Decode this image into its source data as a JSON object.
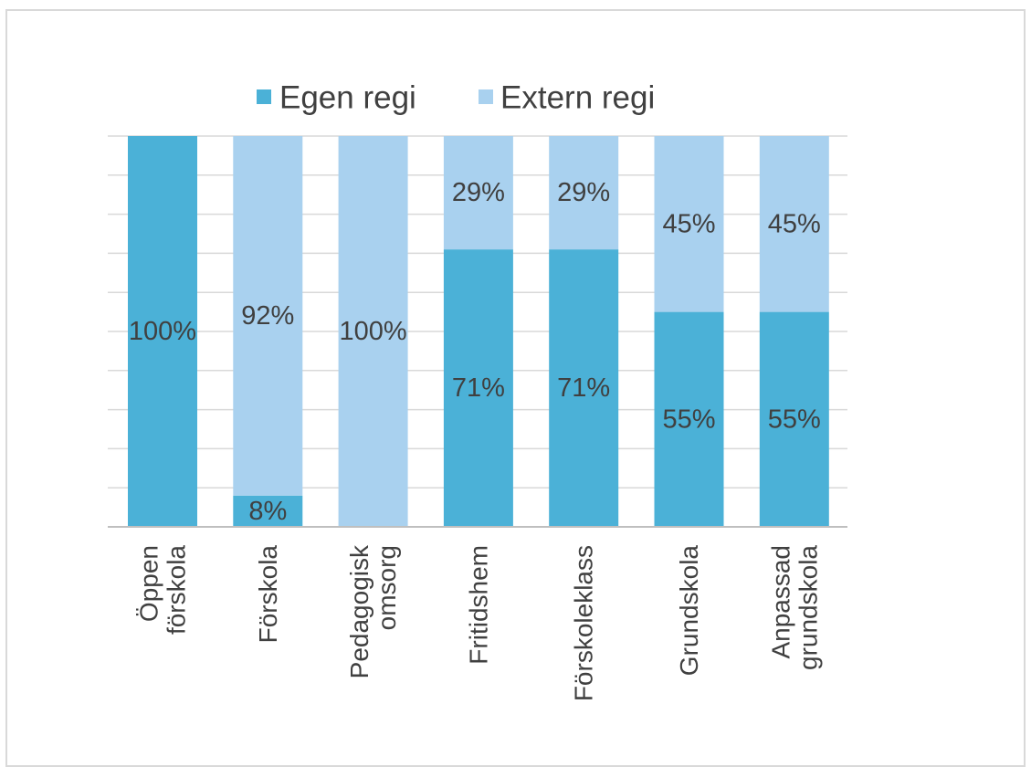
{
  "colors": {
    "egen": "#4bb1d7",
    "extern": "#a9d1ef",
    "grid": "#d9d9d9",
    "axis": "#bfbfbf",
    "text": "#404040",
    "border": "#d9d9d9"
  },
  "chart_data": {
    "type": "bar",
    "stacked": true,
    "normalized": true,
    "categories": [
      [
        "Öppen",
        "förskola"
      ],
      [
        "Förskola"
      ],
      [
        "Pedagogisk",
        "omsorg"
      ],
      [
        "Fritidshem"
      ],
      [
        "Förskoleklass"
      ],
      [
        "Grundskola"
      ],
      [
        "Anpassad",
        "grundskola"
      ]
    ],
    "series": [
      {
        "name": "Egen regi",
        "color": "#4bb1d7",
        "values": [
          100,
          8,
          0,
          71,
          71,
          55,
          55
        ],
        "labels": [
          "100%",
          "8%",
          "",
          "71%",
          "71%",
          "55%",
          "55%"
        ]
      },
      {
        "name": "Extern regi",
        "color": "#a9d1ef",
        "values": [
          0,
          92,
          100,
          29,
          29,
          45,
          45
        ],
        "labels": [
          "",
          "92%",
          "100%",
          "29%",
          "29%",
          "45%",
          "45%"
        ]
      }
    ],
    "ylim": [
      0,
      100
    ],
    "grid": true,
    "legend_position": "top",
    "category_label_rotation": -90
  }
}
